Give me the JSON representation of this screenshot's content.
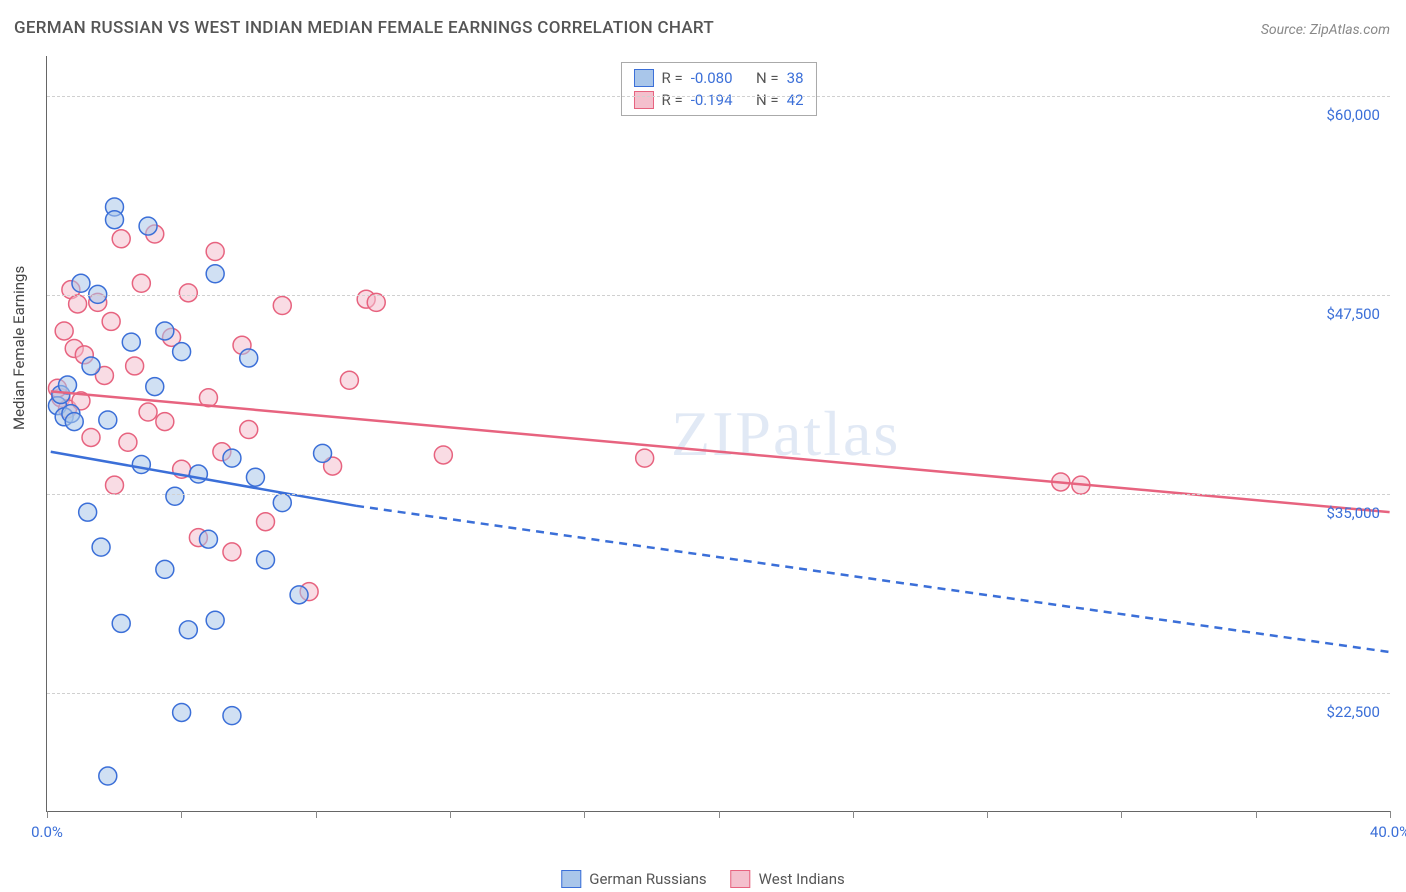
{
  "title": "GERMAN RUSSIAN VS WEST INDIAN MEDIAN FEMALE EARNINGS CORRELATION CHART",
  "source": "Source: ZipAtlas.com",
  "y_axis_label": "Median Female Earnings",
  "watermark": "ZIPatlas",
  "chart": {
    "type": "scatter-with-trendlines",
    "background_color": "#ffffff",
    "grid_color": "#d0d0d0",
    "axis_color": "#666666",
    "x": {
      "min": 0.0,
      "max": 40.0,
      "label_min": "0.0%",
      "label_max": "40.0%",
      "tick_positions_pct": [
        0,
        10,
        20,
        30,
        40,
        50,
        60,
        70,
        80,
        90,
        100
      ]
    },
    "y": {
      "min": 15000,
      "max": 62500,
      "gridlines": [
        22500,
        35000,
        47500,
        60000
      ],
      "tick_labels": {
        "22500": "$22,500",
        "35000": "$35,000",
        "47500": "$47,500",
        "60000": "$60,000"
      }
    },
    "label_color": "#3b6fd8",
    "label_fontsize": 15,
    "title_fontsize": 17,
    "title_color": "#555555",
    "marker_radius": 9,
    "marker_opacity": 0.55,
    "line_width": 2.5
  },
  "series": [
    {
      "name": "German Russians",
      "color_fill": "#a9c6ea",
      "color_stroke": "#3b6fd8",
      "r_label": "R =",
      "r_value": "-0.080",
      "n_label": "N =",
      "n_value": "38",
      "trend": {
        "solid_from": [
          0.1,
          37600
        ],
        "solid_to": [
          9.2,
          34200
        ],
        "dash_to": [
          40,
          25000
        ]
      },
      "points": [
        [
          0.3,
          40500
        ],
        [
          0.4,
          41200
        ],
        [
          0.5,
          39800
        ],
        [
          0.6,
          41800
        ],
        [
          0.7,
          40000
        ],
        [
          0.8,
          39500
        ],
        [
          1.0,
          48200
        ],
        [
          1.2,
          33800
        ],
        [
          1.3,
          43000
        ],
        [
          1.5,
          47500
        ],
        [
          1.6,
          31600
        ],
        [
          1.8,
          39600
        ],
        [
          2.0,
          53000
        ],
        [
          2.2,
          26800
        ],
        [
          2.5,
          44500
        ],
        [
          2.8,
          36800
        ],
        [
          3.0,
          51800
        ],
        [
          3.2,
          41700
        ],
        [
          3.5,
          30200
        ],
        [
          3.5,
          45200
        ],
        [
          3.8,
          34800
        ],
        [
          4.0,
          43900
        ],
        [
          4.0,
          21200
        ],
        [
          4.2,
          26400
        ],
        [
          4.5,
          36200
        ],
        [
          4.8,
          32100
        ],
        [
          5.0,
          48800
        ],
        [
          5.0,
          27000
        ],
        [
          5.5,
          37200
        ],
        [
          5.5,
          21000
        ],
        [
          6.0,
          43500
        ],
        [
          6.2,
          36000
        ],
        [
          6.5,
          30800
        ],
        [
          7.0,
          34400
        ],
        [
          7.5,
          28600
        ],
        [
          8.2,
          37500
        ],
        [
          1.8,
          17200
        ],
        [
          2.0,
          52200
        ]
      ]
    },
    {
      "name": "West Indians",
      "color_fill": "#f4c0cd",
      "color_stroke": "#e7637f",
      "r_label": "R =",
      "r_value": "-0.194",
      "n_label": "N =",
      "n_value": "42",
      "trend": {
        "solid_from": [
          0.1,
          41400
        ],
        "solid_to": [
          40,
          33800
        ]
      },
      "points": [
        [
          0.4,
          41000
        ],
        [
          0.5,
          45200
        ],
        [
          0.6,
          40300
        ],
        [
          0.7,
          47800
        ],
        [
          0.8,
          44100
        ],
        [
          0.9,
          46900
        ],
        [
          1.0,
          40800
        ],
        [
          1.1,
          43700
        ],
        [
          1.3,
          38500
        ],
        [
          1.5,
          47000
        ],
        [
          1.7,
          42400
        ],
        [
          1.9,
          45800
        ],
        [
          2.0,
          35500
        ],
        [
          2.2,
          51000
        ],
        [
          2.4,
          38200
        ],
        [
          2.6,
          43000
        ],
        [
          2.8,
          48200
        ],
        [
          3.0,
          40100
        ],
        [
          3.2,
          51300
        ],
        [
          3.5,
          39500
        ],
        [
          3.7,
          44800
        ],
        [
          4.0,
          36500
        ],
        [
          4.2,
          47600
        ],
        [
          4.5,
          32200
        ],
        [
          4.8,
          41000
        ],
        [
          5.0,
          50200
        ],
        [
          5.2,
          37600
        ],
        [
          5.5,
          31300
        ],
        [
          5.8,
          44300
        ],
        [
          6.0,
          39000
        ],
        [
          6.5,
          33200
        ],
        [
          7.0,
          46800
        ],
        [
          7.8,
          28800
        ],
        [
          8.5,
          36700
        ],
        [
          9.0,
          42100
        ],
        [
          9.5,
          47200
        ],
        [
          9.8,
          47000
        ],
        [
          11.8,
          37400
        ],
        [
          17.8,
          37200
        ],
        [
          30.2,
          35700
        ],
        [
          30.8,
          35500
        ],
        [
          0.3,
          41600
        ]
      ]
    }
  ],
  "legend_bottom": {
    "items": [
      "German Russians",
      "West Indians"
    ]
  }
}
